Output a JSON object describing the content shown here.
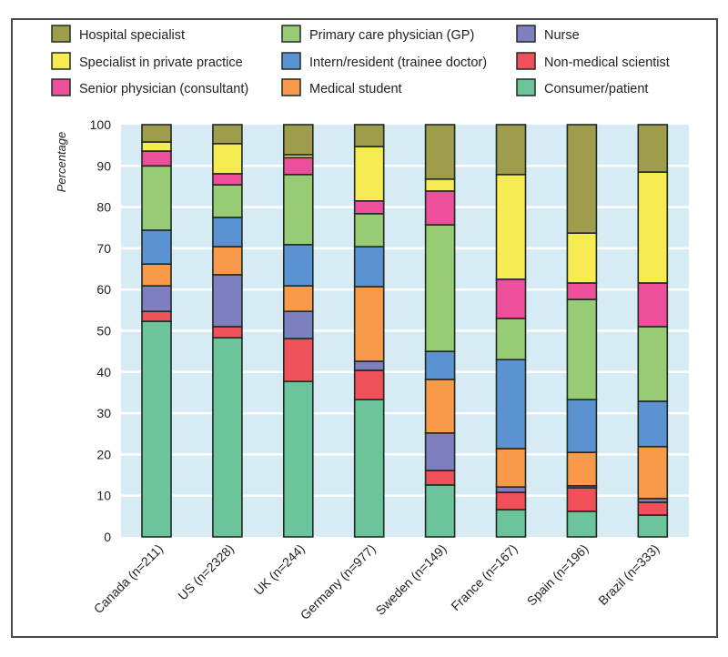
{
  "chart_data": {
    "type": "bar",
    "stacked": true,
    "title": "",
    "xlabel": "",
    "ylabel": "Percentage",
    "ylim": [
      0,
      100
    ],
    "yticks": [
      0,
      10,
      20,
      30,
      40,
      50,
      60,
      70,
      80,
      90,
      100
    ],
    "grid": true,
    "legend_position": "top",
    "categories": [
      "Canada (n=211)",
      "US (n=2328)",
      "UK (n=244)",
      "Germany (n=977)",
      "Sweden (n=149)",
      "France (n=167)",
      "Spain (n=196)",
      "Brazil (n=333)"
    ],
    "legend_order": [
      "Hospital specialist",
      "Primary care physician (GP)",
      "Nurse",
      "Specialist in private practice",
      "Intern/resident (trainee doctor)",
      "Non-medical scientist",
      "Senior physician (consultant)",
      "Medical student",
      "Consumer/patient"
    ],
    "series": [
      {
        "name": "Consumer/patient",
        "color": "#6cc49a",
        "values": [
          52.3,
          48.3,
          37.7,
          33.3,
          12.6,
          6.6,
          6.2,
          5.3
        ]
      },
      {
        "name": "Non-medical scientist",
        "color": "#f0505a",
        "values": [
          2.4,
          2.7,
          10.4,
          7.1,
          3.5,
          4.2,
          5.7,
          3.1
        ]
      },
      {
        "name": "Nurse",
        "color": "#7e7fc0",
        "values": [
          6.2,
          12.6,
          6.6,
          2.2,
          9.1,
          1.3,
          0.5,
          0.9
        ]
      },
      {
        "name": "Medical student",
        "color": "#f89a4a",
        "values": [
          5.3,
          6.8,
          6.2,
          18.1,
          13.0,
          9.3,
          8.1,
          12.6
        ]
      },
      {
        "name": "Intern/resident (trainee doctor)",
        "color": "#5b93d2",
        "values": [
          8.2,
          7.1,
          10.0,
          9.7,
          6.8,
          21.6,
          12.8,
          11.0
        ]
      },
      {
        "name": "Primary care physician (GP)",
        "color": "#98cc74",
        "values": [
          15.6,
          7.9,
          17.0,
          8.0,
          30.7,
          10.0,
          24.3,
          18.1
        ]
      },
      {
        "name": "Senior physician (consultant)",
        "color": "#ee4f9b",
        "values": [
          3.6,
          2.7,
          4.1,
          3.1,
          8.2,
          9.5,
          4.0,
          10.6
        ]
      },
      {
        "name": "Specialist in private practice",
        "color": "#f6eb52",
        "values": [
          2.2,
          7.3,
          0.7,
          13.2,
          2.9,
          25.4,
          12.1,
          26.9
        ]
      },
      {
        "name": "Hospital specialist",
        "color": "#9f9c4c",
        "values": [
          4.2,
          4.6,
          7.3,
          5.3,
          13.2,
          12.1,
          26.3,
          11.5
        ]
      }
    ]
  },
  "colors": {
    "plot_background": "#d6ebf4",
    "gridline": "#ffffff",
    "bar_outline": "#1f2a22",
    "frame": "#4a4a4a"
  }
}
